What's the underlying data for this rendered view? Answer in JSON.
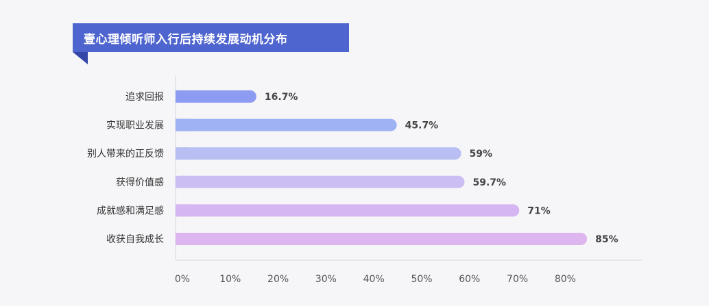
{
  "chart_data": {
    "type": "bar",
    "orientation": "horizontal",
    "title": "壹心理倾听师入行后持续发展动机分布",
    "categories": [
      "追求回报",
      "实现职业发展",
      "别人带来的正反馈",
      "获得价值感",
      "成就感和满足感",
      "收获自我成长"
    ],
    "values": [
      16.7,
      45.7,
      59,
      59.7,
      71,
      85
    ],
    "value_labels": [
      "16.7%",
      "45.7%",
      "59%",
      "59.7%",
      "71%",
      "85%"
    ],
    "xticks": [
      "0%",
      "10%",
      "20%",
      "30%",
      "40%",
      "50%",
      "60%",
      "70%",
      "80%"
    ],
    "xlim": [
      0,
      85
    ],
    "bar_colors": [
      "#8d9cf2",
      "#9fb2f3",
      "#b9bff2",
      "#cbbef3",
      "#d5b6f2",
      "#ddb6f0"
    ],
    "grid": false
  }
}
